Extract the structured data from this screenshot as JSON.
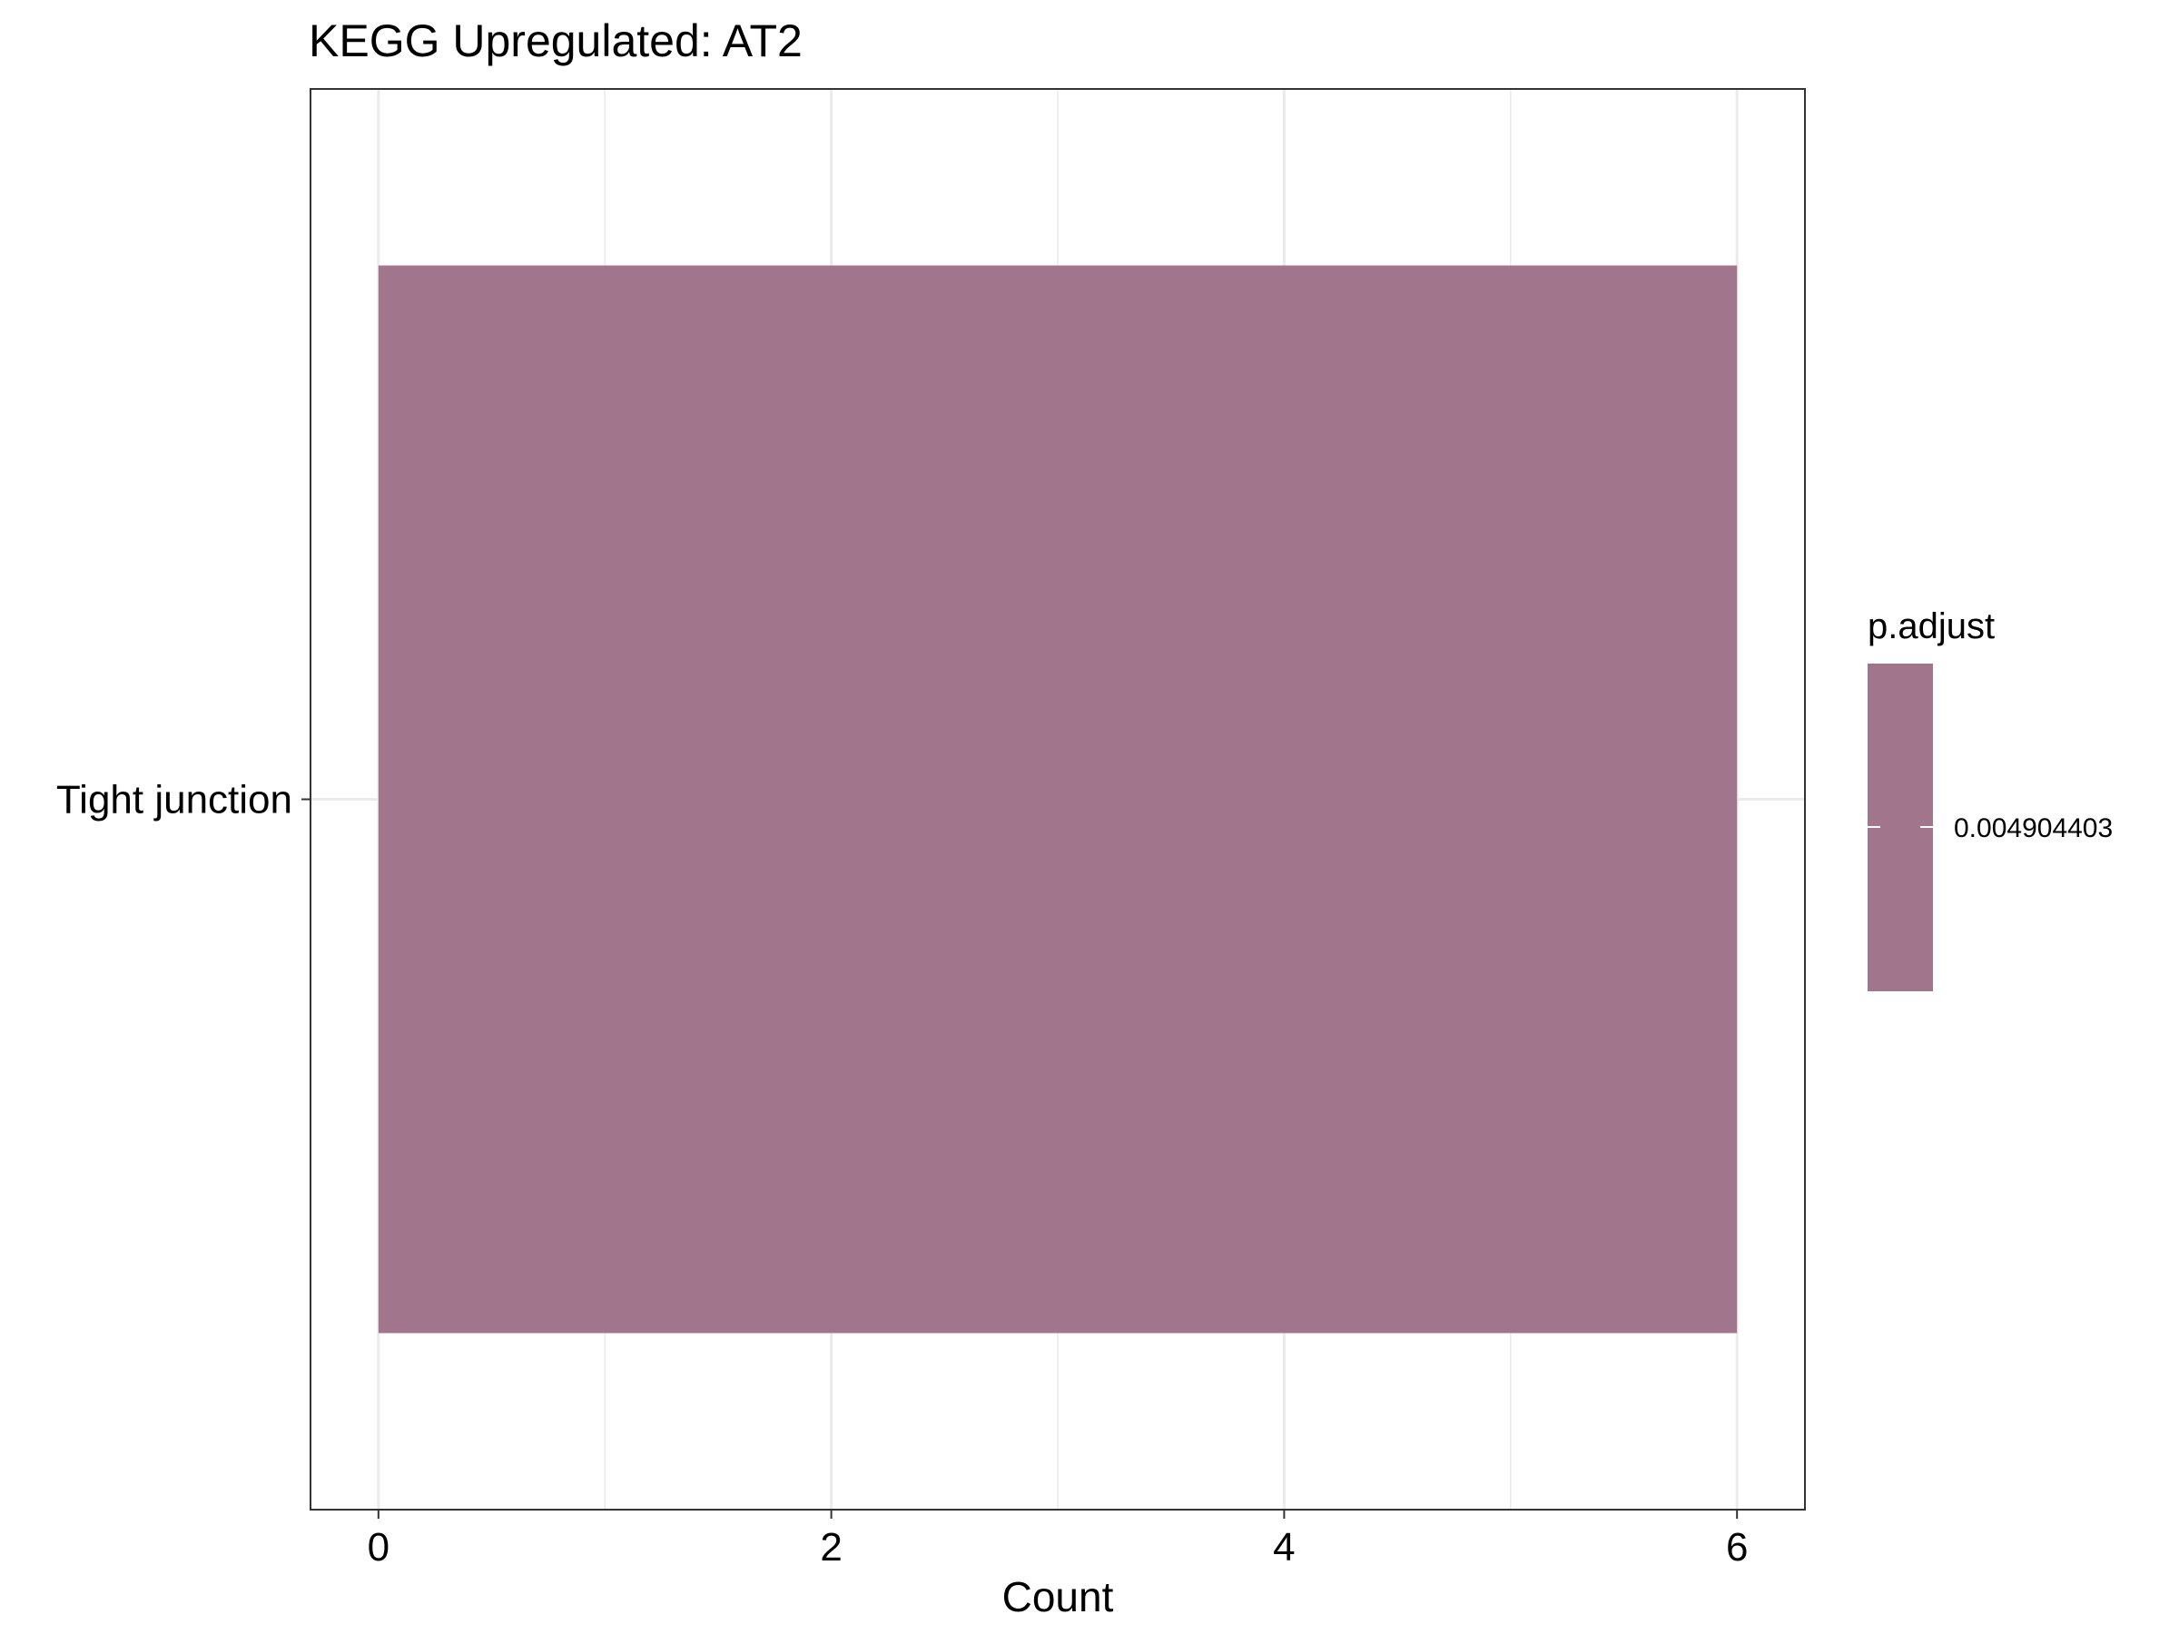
{
  "chart_data": {
    "type": "bar",
    "orientation": "horizontal",
    "title": "KEGG Upregulated: AT2",
    "xlabel": "Count",
    "ylabel": "",
    "categories": [
      "Tight junction"
    ],
    "values": [
      6
    ],
    "xlim": [
      -0.3,
      6.3
    ],
    "x_ticks": [
      0,
      2,
      4,
      6
    ],
    "x_tick_labels": [
      "0",
      "2",
      "4",
      "6"
    ],
    "grid": true,
    "bar_color": "#a1768c",
    "legend": {
      "title": "p.adjust",
      "position": "right",
      "color": "#a1768c",
      "labels": [
        "0.004904403"
      ]
    }
  }
}
